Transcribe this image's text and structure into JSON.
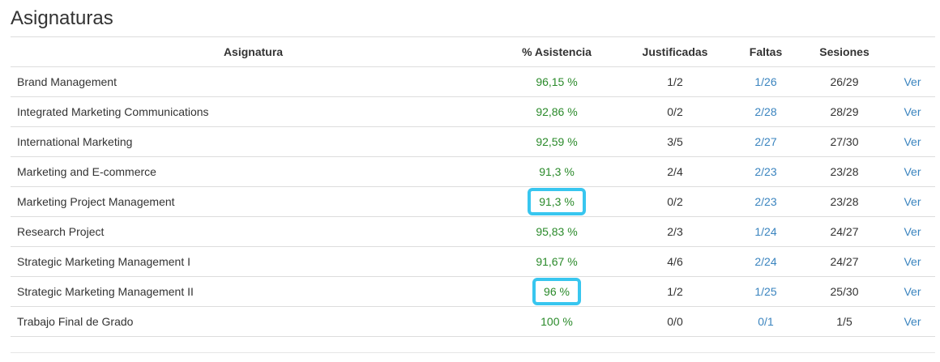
{
  "page": {
    "title": "Asignaturas"
  },
  "table": {
    "headers": {
      "subject": "Asignatura",
      "attendance": "% Asistencia",
      "justified": "Justificadas",
      "absences": "Faltas",
      "sessions": "Sesiones"
    },
    "rows": [
      {
        "subject": "Brand Management",
        "attendance": "96,15 %",
        "justified": "1/2",
        "absences": "1/26",
        "sessions": "26/29",
        "action": "Ver",
        "highlighted": false
      },
      {
        "subject": "Integrated Marketing Communications",
        "attendance": "92,86 %",
        "justified": "0/2",
        "absences": "2/28",
        "sessions": "28/29",
        "action": "Ver",
        "highlighted": false
      },
      {
        "subject": "International Marketing",
        "attendance": "92,59 %",
        "justified": "3/5",
        "absences": "2/27",
        "sessions": "27/30",
        "action": "Ver",
        "highlighted": false
      },
      {
        "subject": "Marketing and E-commerce",
        "attendance": "91,3 %",
        "justified": "2/4",
        "absences": "2/23",
        "sessions": "23/28",
        "action": "Ver",
        "highlighted": false
      },
      {
        "subject": "Marketing Project Management",
        "attendance": "91,3 %",
        "justified": "0/2",
        "absences": "2/23",
        "sessions": "23/28",
        "action": "Ver",
        "highlighted": true
      },
      {
        "subject": "Research Project",
        "attendance": "95,83 %",
        "justified": "2/3",
        "absences": "1/24",
        "sessions": "24/27",
        "action": "Ver",
        "highlighted": false
      },
      {
        "subject": "Strategic Marketing Management I",
        "attendance": "91,67 %",
        "justified": "4/6",
        "absences": "2/24",
        "sessions": "24/27",
        "action": "Ver",
        "highlighted": false
      },
      {
        "subject": "Strategic Marketing Management II",
        "attendance": "96 %",
        "justified": "1/2",
        "absences": "1/25",
        "sessions": "25/30",
        "action": "Ver",
        "highlighted": true
      },
      {
        "subject": "Trabajo Final de Grado",
        "attendance": "100 %",
        "justified": "0/0",
        "absences": "0/1",
        "sessions": "1/5",
        "action": "Ver",
        "highlighted": false
      }
    ]
  },
  "colors": {
    "attendance": "#2a8a2a",
    "link": "#3a84bf",
    "highlight": "#38c6ef"
  }
}
